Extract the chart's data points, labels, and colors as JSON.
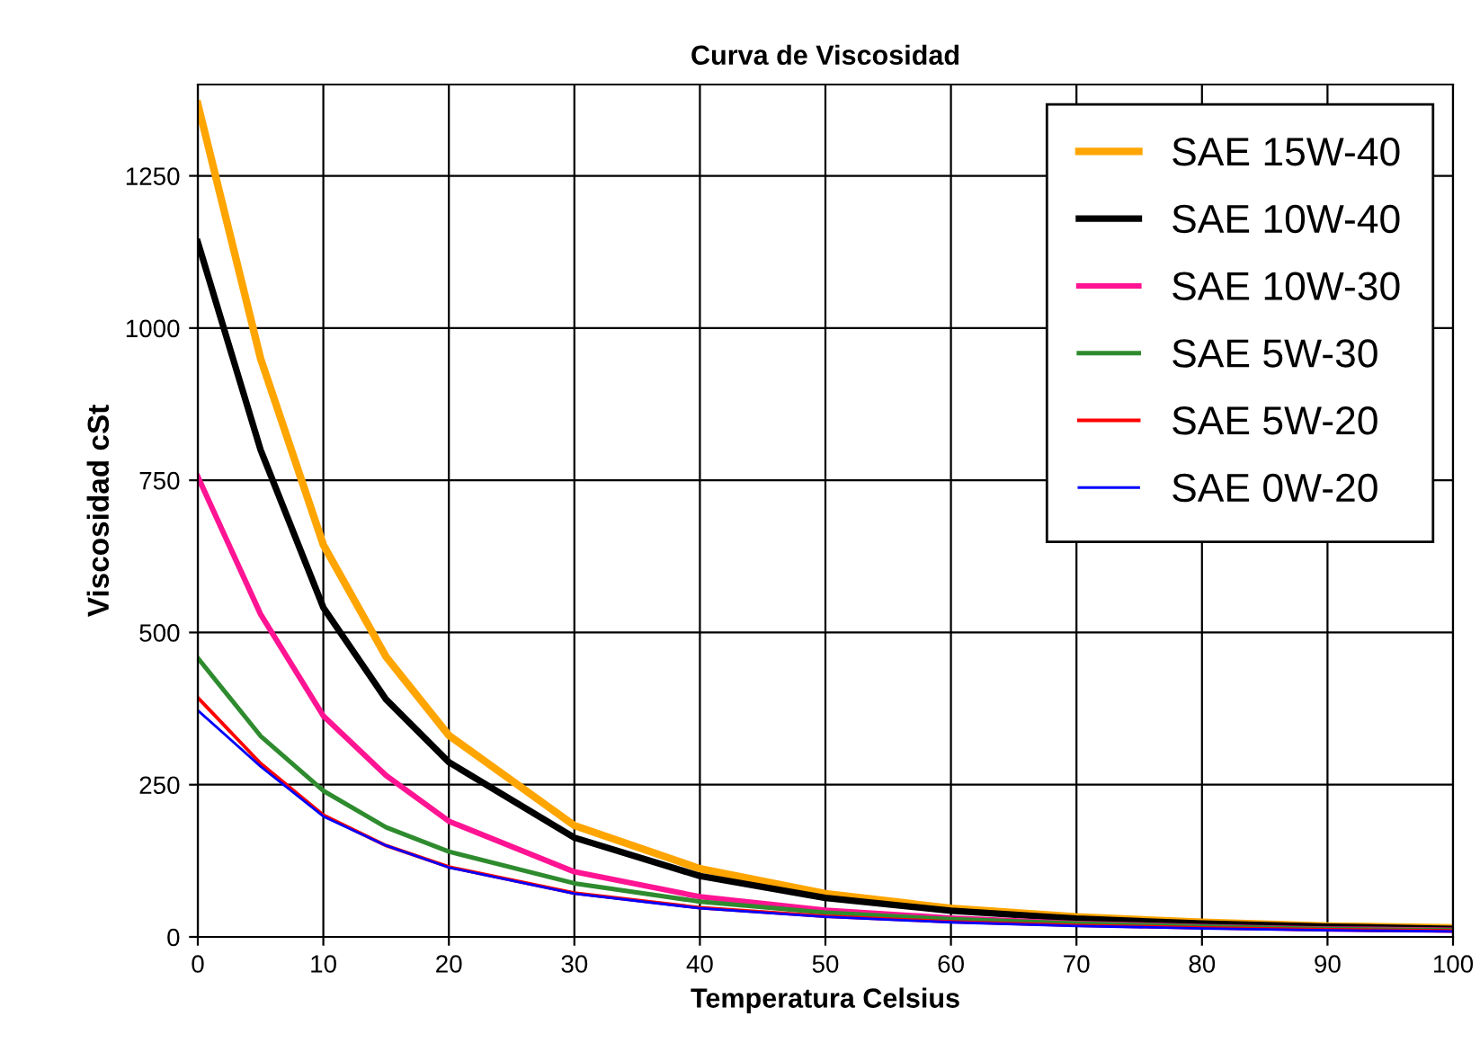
{
  "chart_data": {
    "type": "line",
    "title": "Curva de Viscosidad",
    "xlabel": "Temperatura Celsius",
    "ylabel": "Viscosidad cSt",
    "x": [
      0,
      5,
      10,
      15,
      20,
      30,
      40,
      50,
      60,
      70,
      80,
      90,
      100
    ],
    "series": [
      {
        "name": "SAE 15W-40",
        "color": "#ffa500",
        "values": [
          1368,
          950,
          644,
          460,
          331,
          183,
          112,
          71,
          47,
          33,
          24,
          18,
          15
        ]
      },
      {
        "name": "SAE 10W-40",
        "color": "#000000",
        "values": [
          1141,
          800,
          541,
          390,
          287,
          163,
          100,
          64,
          43,
          30,
          22,
          17,
          13
        ]
      },
      {
        "name": "SAE 10W-30",
        "color": "#ff1493",
        "values": [
          756,
          530,
          363,
          265,
          190,
          107,
          66,
          44,
          31,
          22,
          17,
          13,
          11
        ]
      },
      {
        "name": "SAE 5W-30",
        "color": "#2e8b2e",
        "values": [
          458,
          330,
          240,
          180,
          140,
          88,
          58,
          40,
          29,
          22,
          17,
          13,
          11
        ]
      },
      {
        "name": "SAE 5W-20",
        "color": "#ff0000",
        "values": [
          393,
          285,
          200,
          150,
          115,
          72,
          48,
          34,
          25,
          19,
          15,
          12,
          10
        ]
      },
      {
        "name": "SAE 0W-20",
        "color": "#0000ff",
        "values": [
          372,
          280,
          198,
          150,
          114,
          71,
          47,
          33,
          24,
          18,
          14,
          11,
          9
        ]
      }
    ],
    "xlim": [
      0,
      100
    ],
    "ylim": [
      0,
      1400
    ],
    "xticks": [
      0,
      10,
      20,
      30,
      40,
      50,
      60,
      70,
      80,
      90,
      100
    ],
    "yticks": [
      0,
      250,
      500,
      750,
      1000,
      1250
    ],
    "grid": true,
    "legend": "top right",
    "marker": "none",
    "line_style": "solid"
  }
}
